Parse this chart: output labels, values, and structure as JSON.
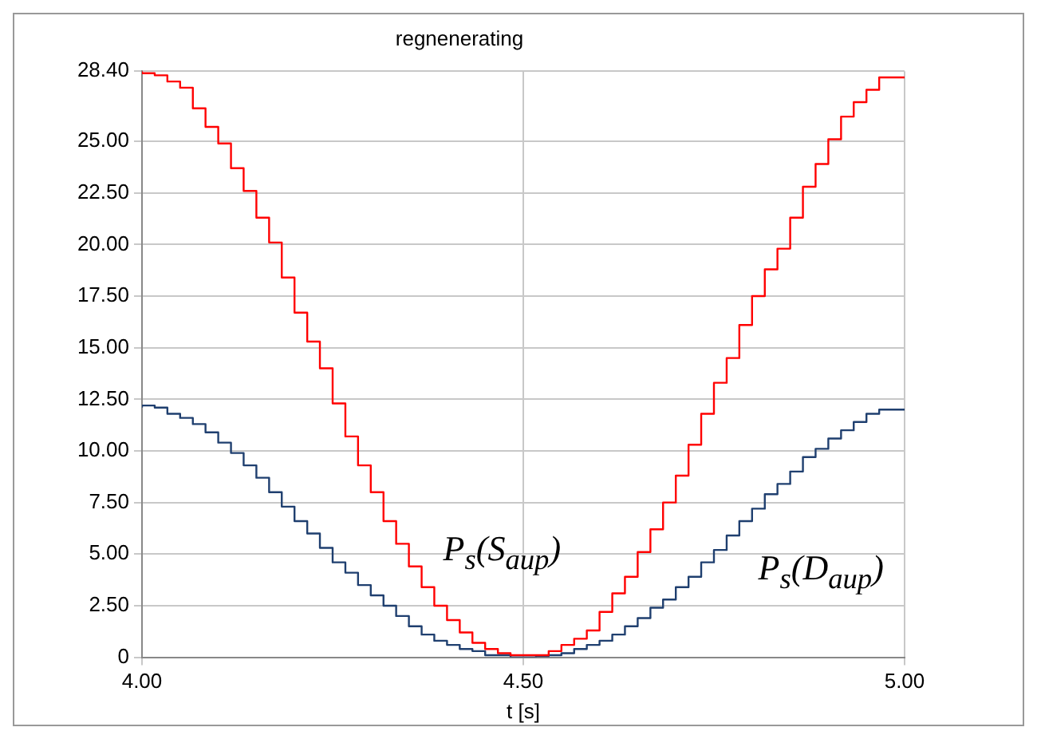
{
  "chart_data": {
    "type": "step",
    "title": "regnenerating",
    "xlabel": "t [s]",
    "x": [
      4,
      4.0167,
      4.0333,
      4.05,
      4.0667,
      4.0833,
      4.1,
      4.1167,
      4.1333,
      4.15,
      4.1667,
      4.1833,
      4.2,
      4.2167,
      4.2333,
      4.25,
      4.2667,
      4.2833,
      4.3,
      4.3167,
      4.3333,
      4.35,
      4.3667,
      4.3833,
      4.4,
      4.4167,
      4.4333,
      4.45,
      4.4667,
      4.4833,
      4.5,
      4.5167,
      4.5333,
      4.55,
      4.5667,
      4.5833,
      4.6,
      4.6167,
      4.6333,
      4.65,
      4.6667,
      4.6833,
      4.7,
      4.7167,
      4.7333,
      4.75,
      4.7667,
      4.7833,
      4.8,
      4.8167,
      4.8333,
      4.85,
      4.8667,
      4.8833,
      4.9,
      4.9167,
      4.9333,
      4.95,
      4.9667,
      4.9833,
      5
    ],
    "series": [
      {
        "name": "P$_{s}$(S$_{aup}$)",
        "color": "#ff0000",
        "values": [
          28.4,
          28.3,
          28.2,
          27.9,
          27.6,
          26.6,
          25.7,
          24.9,
          23.7,
          22.6,
          21.3,
          20.1,
          18.4,
          16.7,
          15.3,
          14.0,
          12.3,
          10.7,
          9.3,
          8.0,
          6.6,
          5.5,
          4.4,
          3.4,
          2.5,
          1.8,
          1.2,
          0.7,
          0.4,
          0.2,
          0.1,
          0.1,
          0.1,
          0.3,
          0.6,
          0.9,
          1.3,
          2.2,
          3.1,
          3.9,
          5.1,
          6.2,
          7.5,
          8.8,
          10.3,
          11.8,
          13.3,
          14.5,
          16.1,
          17.5,
          18.8,
          19.8,
          21.3,
          22.8,
          23.9,
          25.1,
          26.2,
          26.9,
          27.5,
          28.1,
          28.1
        ]
      },
      {
        "name": "P$_{s}$(D$_{aup}$)",
        "color": "#1f3f6f",
        "values": [
          12.1,
          12.2,
          12.1,
          11.8,
          11.6,
          11.3,
          10.9,
          10.4,
          9.9,
          9.3,
          8.7,
          8.0,
          7.3,
          6.6,
          6.0,
          5.3,
          4.6,
          4.1,
          3.5,
          3.0,
          2.5,
          2.0,
          1.5,
          1.1,
          0.8,
          0.6,
          0.4,
          0.3,
          0.1,
          0.1,
          0,
          0,
          0.05,
          0.1,
          0.2,
          0.4,
          0.6,
          0.8,
          1.1,
          1.5,
          1.9,
          2.4,
          2.8,
          3.4,
          3.9,
          4.6,
          5.2,
          5.9,
          6.6,
          7.2,
          7.9,
          8.4,
          9.0,
          9.7,
          10.1,
          10.6,
          11.0,
          11.4,
          11.8,
          12.0,
          12.0
        ]
      }
    ],
    "xlim": [
      4,
      5
    ],
    "xticks": [
      {
        "value": 4,
        "label": "4.00"
      },
      {
        "value": 4.5,
        "label": "4.50"
      },
      {
        "value": 5,
        "label": "5.00"
      }
    ],
    "ylim": [
      0,
      28.4
    ],
    "yticks": [
      0,
      {
        "value": 2.5,
        "label": "2.50"
      },
      {
        "value": 5,
        "label": "5.00"
      },
      {
        "value": 7.5,
        "label": "7.50"
      },
      {
        "value": 10,
        "label": "10.00"
      },
      {
        "value": 12.5,
        "label": "12.50"
      },
      {
        "value": 15,
        "label": "15.00"
      },
      {
        "value": 17.5,
        "label": "17.50"
      },
      {
        "value": 20,
        "label": "20.00"
      },
      {
        "value": 22.5,
        "label": "22.50"
      },
      {
        "value": 25,
        "label": "25.00"
      },
      {
        "value": 28.4,
        "label": "28.40"
      }
    ],
    "grid": true,
    "legend": false,
    "marker": "none",
    "line_style": "solid"
  }
}
